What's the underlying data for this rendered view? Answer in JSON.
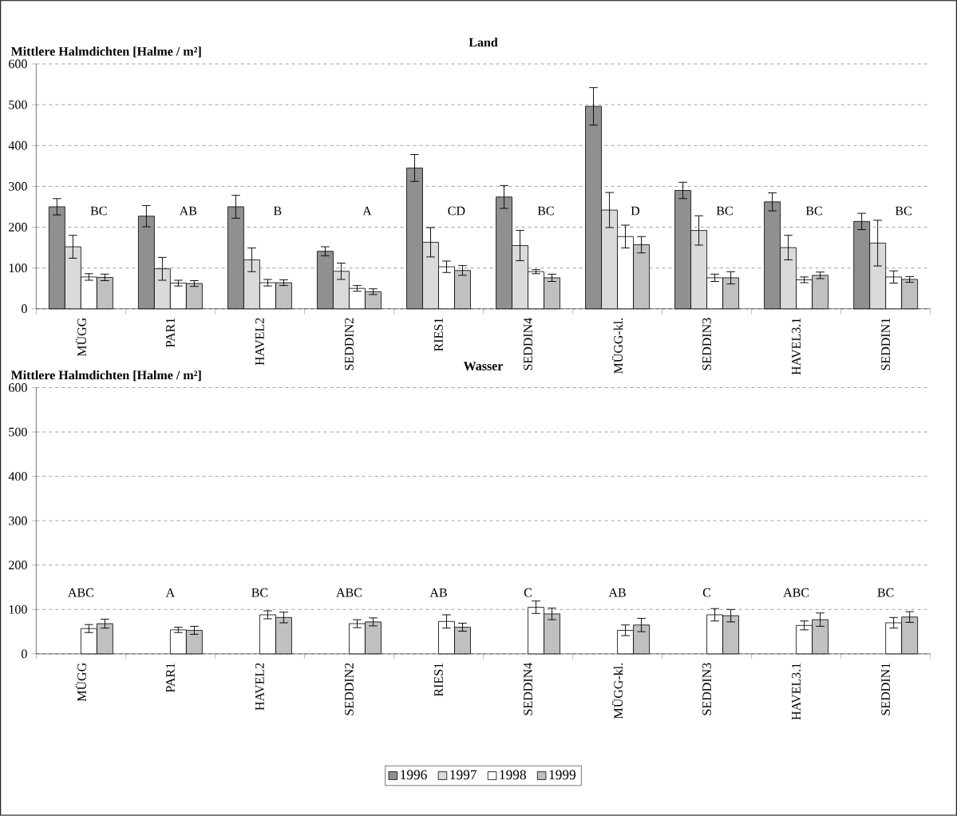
{
  "chart_data": [
    {
      "type": "bar",
      "title": "Land",
      "ylabel": "Mittlere Halmdichten [Halme / m²]",
      "categories": [
        "MÜGG",
        "PAR1",
        "HAVEL2",
        "SEDDIN2",
        "RIES1",
        "SEDDIN4",
        "MÜGG-kl.",
        "SEDDIN3",
        "HAVEL3.1",
        "SEDDIN1"
      ],
      "series": [
        {
          "color": "#909090",
          "values": [
            250,
            227,
            250,
            141,
            345,
            274,
            496,
            290,
            262,
            214
          ],
          "errors": [
            20,
            26,
            28,
            11,
            33,
            28,
            46,
            20,
            22,
            20
          ]
        },
        {
          "color": "#dadada",
          "values": [
            152,
            98,
            120,
            92,
            163,
            155,
            242,
            192,
            150,
            161
          ],
          "errors": [
            28,
            28,
            29,
            20,
            36,
            37,
            43,
            36,
            30,
            56
          ]
        },
        {
          "color": "#ffffff",
          "values": [
            78,
            63,
            64,
            50,
            103,
            91,
            177,
            76,
            71,
            78
          ],
          "errors": [
            8,
            7,
            8,
            7,
            14,
            5,
            28,
            9,
            7,
            15
          ]
        },
        {
          "color": "#c0c0c0",
          "values": [
            77,
            62,
            64,
            42,
            94,
            76,
            157,
            76,
            82,
            72
          ],
          "errors": [
            8,
            7,
            7,
            7,
            12,
            9,
            20,
            15,
            8,
            7
          ]
        }
      ],
      "ylim": [
        0,
        600
      ],
      "yticks": [
        0,
        100,
        200,
        300,
        400,
        500,
        600
      ],
      "grid": "y",
      "annotations": [
        "BC",
        "AB",
        "B",
        "A",
        "CD",
        "BC",
        "D",
        "BC",
        "BC",
        "BC"
      ]
    },
    {
      "type": "bar",
      "title": "Wasser",
      "ylabel": "Mittlere Halmdichten [Halme / m²]",
      "categories": [
        "MÜGG",
        "PAR1",
        "HAVEL2",
        "SEDDIN2",
        "RIES1",
        "SEDDIN4",
        "MÜGG-kl.",
        "SEDDIN3",
        "HAVEL3.1",
        "SEDDIN1"
      ],
      "series": [
        {
          "name": "1996",
          "color": "#909090",
          "values": [
            null,
            null,
            null,
            null,
            null,
            null,
            null,
            null,
            null,
            null
          ]
        },
        {
          "name": "1997",
          "color": "#dadada",
          "values": [
            null,
            null,
            null,
            null,
            null,
            null,
            null,
            null,
            null,
            null
          ]
        },
        {
          "name": "1998",
          "color": "#ffffff",
          "values": [
            57,
            54,
            88,
            68,
            73,
            105,
            53,
            88,
            64,
            70
          ],
          "errors": [
            9,
            6,
            9,
            9,
            15,
            14,
            12,
            14,
            10,
            12
          ]
        },
        {
          "name": "1999",
          "color": "#c0c0c0",
          "values": [
            68,
            53,
            82,
            72,
            60,
            90,
            65,
            86,
            77,
            83
          ],
          "errors": [
            10,
            9,
            12,
            9,
            9,
            13,
            15,
            14,
            15,
            12
          ]
        }
      ],
      "ylim": [
        0,
        600
      ],
      "yticks": [
        0,
        100,
        200,
        300,
        400,
        500,
        600
      ],
      "grid": "y",
      "legend": "bottom",
      "annotations": [
        "ABC",
        "A",
        "BC",
        "ABC",
        "AB",
        "C",
        "AB",
        "C",
        "ABC",
        "BC"
      ]
    }
  ]
}
